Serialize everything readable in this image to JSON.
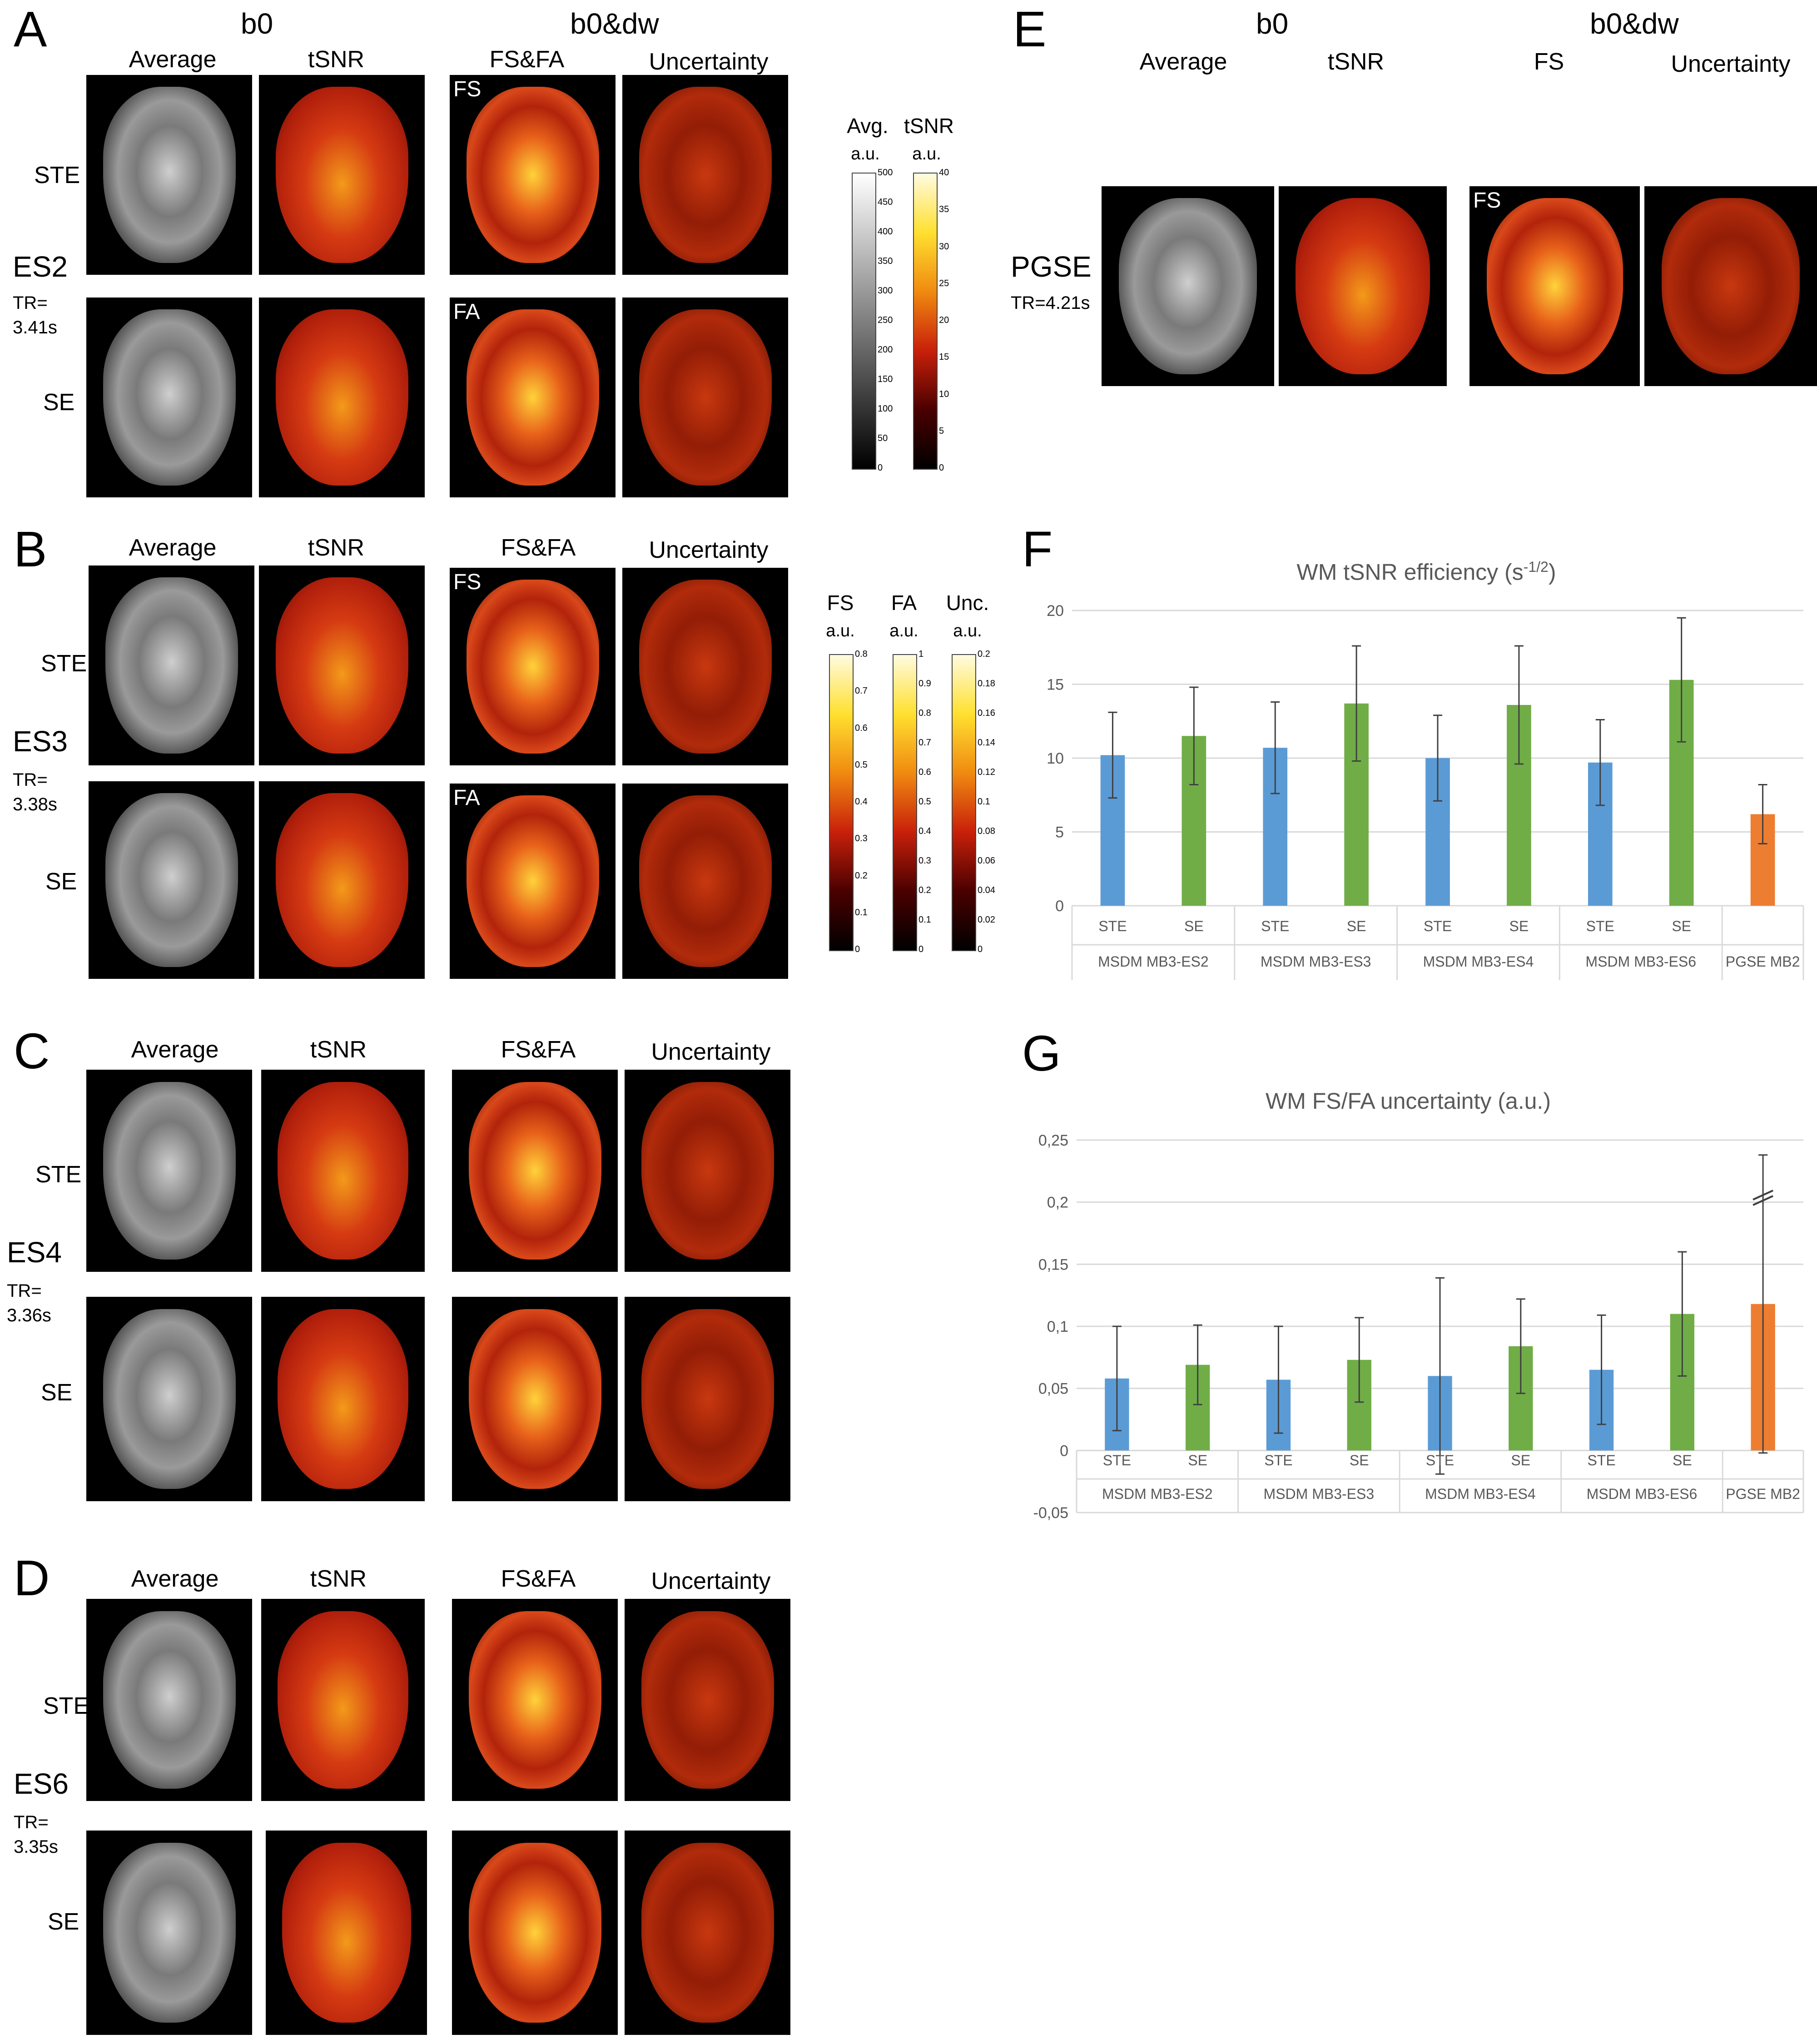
{
  "panels": {
    "A": {
      "letter": "A",
      "group_b0": "b0",
      "group_dw": "b0&dw",
      "cols": [
        "Average",
        "tSNR",
        "FS&FA",
        "Uncertainty"
      ],
      "rows": [
        "STE",
        "SE"
      ],
      "es": "ES2",
      "tr": "TR=",
      "tr_val": "3.41s",
      "tags": [
        "FS",
        "FA"
      ]
    },
    "B": {
      "letter": "B",
      "cols": [
        "Average",
        "tSNR",
        "FS&FA",
        "Uncertainty"
      ],
      "rows": [
        "STE",
        "SE"
      ],
      "es": "ES3",
      "tr": "TR=",
      "tr_val": "3.38s",
      "tags": [
        "FS",
        "FA"
      ]
    },
    "C": {
      "letter": "C",
      "cols": [
        "Average",
        "tSNR",
        "FS&FA",
        "Uncertainty"
      ],
      "rows": [
        "STE",
        "SE"
      ],
      "es": "ES4",
      "tr": "TR=",
      "tr_val": "3.36s"
    },
    "D": {
      "letter": "D",
      "cols": [
        "Average",
        "tSNR",
        "FS&FA",
        "Uncertainty"
      ],
      "rows": [
        "STE",
        "SE"
      ],
      "es": "ES6",
      "tr": "TR=",
      "tr_val": "3.35s"
    },
    "E": {
      "letter": "E",
      "group_b0": "b0",
      "group_dw": "b0&dw",
      "cols": [
        "Average",
        "tSNR",
        "FS",
        "Uncertainty"
      ],
      "label": "PGSE",
      "tr": "TR=4.21s",
      "tag": "FS"
    },
    "F": {
      "letter": "F"
    },
    "G": {
      "letter": "G"
    }
  },
  "colorbars": {
    "top": {
      "avg_title": "Avg.",
      "avg_unit": "a.u.",
      "avg_ticks": [
        "500",
        "450",
        "400",
        "350",
        "300",
        "250",
        "200",
        "150",
        "100",
        "50",
        "0"
      ],
      "tsnr_title": "tSNR",
      "tsnr_unit": "a.u.",
      "tsnr_ticks": [
        "40",
        "35",
        "30",
        "25",
        "20",
        "15",
        "10",
        "5",
        "0"
      ]
    },
    "bottom": {
      "fs_title": "FS",
      "fs_unit": "a.u.",
      "fs_ticks": [
        "0.8",
        "0.7",
        "0.6",
        "0.5",
        "0.4",
        "0.3",
        "0.2",
        "0.1",
        "0"
      ],
      "fa_title": "FA",
      "fa_unit": "a.u.",
      "fa_ticks": [
        "1",
        "0.9",
        "0.8",
        "0.7",
        "0.6",
        "0.5",
        "0.4",
        "0.3",
        "0.2",
        "0.1",
        "0"
      ],
      "unc_title": "Unc.",
      "unc_unit": "a.u.",
      "unc_ticks": [
        "0.2",
        "0.18",
        "0.16",
        "0.14",
        "0.12",
        "0.1",
        "0.08",
        "0.06",
        "0.04",
        "0.02",
        "0"
      ]
    }
  },
  "colors": {
    "ste": "#5b9bd5",
    "se": "#70ad47",
    "pgse": "#ed7d31",
    "gridline": "#d9d9d9",
    "axis_text": "#595959"
  },
  "chart_data": [
    {
      "type": "bar",
      "title": "WM tSNR efficiency (s-1/2)",
      "title_main": "WM tSNR efficiency (s",
      "title_sup": "-1/2",
      "title_end": ")",
      "ylim": [
        0,
        20
      ],
      "yticks": [
        "0",
        "5",
        "10",
        "15",
        "20"
      ],
      "ytick_values": [
        0,
        5,
        10,
        15,
        20
      ],
      "categories": [
        "STE",
        "SE",
        "STE",
        "SE",
        "STE",
        "SE",
        "STE",
        "SE",
        ""
      ],
      "groups": [
        "MSDM MB3-ES2",
        "MSDM MB3-ES3",
        "MSDM MB3-ES4",
        "MSDM MB3-ES6",
        "PGSE MB2"
      ],
      "values": [
        10.2,
        11.5,
        10.7,
        13.7,
        10.0,
        13.6,
        9.7,
        15.3,
        6.2
      ],
      "errors": [
        2.9,
        3.3,
        3.1,
        3.9,
        2.9,
        4.0,
        2.9,
        4.2,
        2.0
      ],
      "bar_colors": [
        "ste",
        "se",
        "ste",
        "se",
        "ste",
        "se",
        "ste",
        "se",
        "pgse"
      ]
    },
    {
      "type": "bar",
      "title": "WM FS/FA uncertainty (a.u.)",
      "ylim": [
        -0.05,
        0.25
      ],
      "yticks": [
        "-0,05",
        "0",
        "0,05",
        "0,1",
        "0,15",
        "0,2",
        "0,25"
      ],
      "ytick_values": [
        -0.05,
        0,
        0.05,
        0.1,
        0.15,
        0.2,
        0.25
      ],
      "categories": [
        "STE",
        "SE",
        "STE",
        "SE",
        "STE",
        "SE",
        "STE",
        "SE",
        ""
      ],
      "groups": [
        "MSDM MB3-ES2",
        "MSDM MB3-ES3",
        "MSDM MB3-ES4",
        "MSDM MB3-ES6",
        "PGSE MB2"
      ],
      "values": [
        0.058,
        0.069,
        0.057,
        0.073,
        0.06,
        0.084,
        0.065,
        0.11,
        0.118
      ],
      "errors": [
        0.042,
        0.032,
        0.043,
        0.034,
        0.079,
        0.038,
        0.044,
        0.05,
        0.12
      ],
      "bar_colors": [
        "ste",
        "se",
        "ste",
        "se",
        "ste",
        "se",
        "ste",
        "se",
        "pgse"
      ],
      "axis_break": "PGSE MB2"
    }
  ]
}
